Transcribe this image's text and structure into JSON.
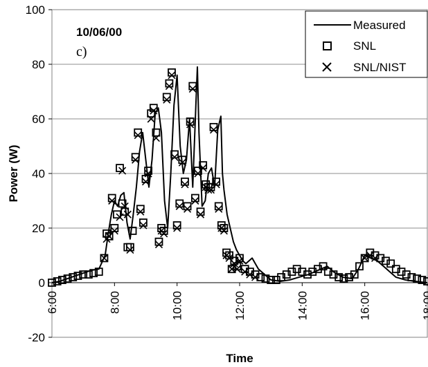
{
  "chart_data": {
    "type": "line",
    "xlabel": "Time",
    "ylabel": "Power (W)",
    "xlim": [
      6,
      18
    ],
    "ylim": [
      -20,
      100
    ],
    "x_ticks": [
      {
        "value": 6,
        "label": "6:00"
      },
      {
        "value": 8,
        "label": "8:00"
      },
      {
        "value": 10,
        "label": "10:00"
      },
      {
        "value": 12,
        "label": "12:00"
      },
      {
        "value": 14,
        "label": "14:00"
      },
      {
        "value": 16,
        "label": "16:00"
      },
      {
        "value": 18,
        "label": "18:00"
      }
    ],
    "y_ticks": [
      {
        "value": -20,
        "label": "-20"
      },
      {
        "value": 0,
        "label": "0"
      },
      {
        "value": 20,
        "label": "20"
      },
      {
        "value": 40,
        "label": "40"
      },
      {
        "value": 60,
        "label": "60"
      },
      {
        "value": 80,
        "label": "80"
      },
      {
        "value": 100,
        "label": "100"
      }
    ],
    "grid": "horizontal",
    "legend": "top-right",
    "annotations": {
      "date": "10/06/00",
      "panel": "c)"
    },
    "series": [
      {
        "name": "Measured",
        "marker": "line",
        "color": "#000000",
        "x": [
          6.0,
          6.25,
          6.5,
          6.75,
          7.0,
          7.25,
          7.5,
          7.7,
          7.8,
          7.9,
          8.0,
          8.1,
          8.2,
          8.3,
          8.4,
          8.5,
          8.6,
          8.7,
          8.8,
          8.9,
          9.0,
          9.1,
          9.2,
          9.3,
          9.4,
          9.5,
          9.6,
          9.7,
          9.8,
          9.9,
          10.0,
          10.1,
          10.2,
          10.3,
          10.4,
          10.5,
          10.6,
          10.65,
          10.7,
          10.8,
          10.9,
          11.0,
          11.1,
          11.2,
          11.3,
          11.4,
          11.45,
          11.5,
          11.6,
          11.7,
          11.8,
          11.9,
          12.0,
          12.1,
          12.2,
          12.3,
          12.4,
          12.6,
          12.8,
          13.0,
          13.3,
          13.6,
          13.9,
          14.2,
          14.5,
          14.8,
          15.0,
          15.3,
          15.6,
          15.8,
          16.0,
          16.2,
          16.4,
          16.6,
          16.8,
          17.0,
          17.3,
          17.6,
          18.0
        ],
        "y": [
          0,
          0.5,
          1.5,
          2.5,
          3.5,
          4.5,
          5,
          10,
          18,
          25,
          30,
          28,
          32,
          33,
          22,
          16,
          25,
          35,
          48,
          55,
          45,
          35,
          45,
          62,
          64,
          55,
          30,
          20,
          40,
          65,
          76,
          50,
          40,
          45,
          60,
          35,
          65,
          79,
          55,
          28,
          30,
          40,
          42,
          35,
          56,
          61,
          40,
          34,
          25,
          20,
          15,
          12,
          10,
          8,
          7,
          8,
          9,
          5,
          3,
          1,
          0.5,
          1,
          2,
          3,
          4.5,
          6,
          4,
          2,
          1.5,
          5,
          10,
          9,
          8,
          6,
          4,
          2,
          1,
          0.5,
          0
        ]
      },
      {
        "name": "SNL",
        "marker": "square",
        "color": "#000000",
        "x": [
          6.0,
          6.17,
          6.33,
          6.5,
          6.67,
          6.83,
          7.0,
          7.17,
          7.33,
          7.5,
          7.67,
          7.75,
          7.83,
          7.92,
          8.0,
          8.08,
          8.17,
          8.25,
          8.33,
          8.42,
          8.5,
          8.58,
          8.67,
          8.75,
          8.83,
          8.92,
          9.0,
          9.08,
          9.17,
          9.25,
          9.33,
          9.42,
          9.5,
          9.58,
          9.67,
          9.75,
          9.83,
          9.92,
          10.0,
          10.08,
          10.17,
          10.25,
          10.33,
          10.42,
          10.5,
          10.58,
          10.67,
          10.75,
          10.83,
          10.92,
          11.0,
          11.08,
          11.17,
          11.25,
          11.33,
          11.42,
          11.5,
          11.58,
          11.67,
          11.75,
          11.83,
          11.92,
          12.0,
          12.17,
          12.33,
          12.5,
          12.67,
          12.83,
          13.0,
          13.17,
          13.33,
          13.5,
          13.67,
          13.83,
          14.0,
          14.17,
          14.33,
          14.5,
          14.67,
          14.83,
          15.0,
          15.17,
          15.33,
          15.5,
          15.67,
          15.83,
          16.0,
          16.17,
          16.33,
          16.5,
          16.67,
          16.83,
          17.0,
          17.17,
          17.33,
          17.5,
          17.67,
          17.83,
          18.0
        ],
        "y": [
          0,
          0.5,
          1,
          1.5,
          2,
          2.5,
          3,
          3,
          3.5,
          4,
          9,
          18,
          17,
          31,
          20,
          25,
          42,
          29,
          26,
          13,
          13,
          19,
          46,
          55,
          27,
          22,
          38,
          41,
          62,
          64,
          55,
          15,
          20,
          19,
          68,
          73,
          77,
          47,
          21,
          29,
          45,
          37,
          28,
          59,
          72,
          31,
          41,
          26,
          43,
          36,
          35,
          35,
          57,
          37,
          28,
          21,
          20,
          11,
          10,
          5,
          8,
          6,
          9,
          5,
          4,
          3,
          2,
          1.5,
          1,
          1,
          2,
          3,
          4,
          5,
          4,
          3,
          4,
          5,
          6,
          4,
          3,
          2,
          1.5,
          2,
          3,
          6,
          9,
          11,
          10,
          9,
          8,
          7,
          5,
          4,
          3,
          2,
          1.5,
          1,
          0.5
        ]
      },
      {
        "name": "SNL/NIST",
        "marker": "x",
        "color": "#000000",
        "x": [
          7.67,
          7.75,
          7.83,
          7.92,
          8.0,
          8.17,
          8.25,
          8.33,
          8.42,
          8.5,
          8.67,
          8.75,
          8.83,
          8.92,
          9.0,
          9.08,
          9.17,
          9.25,
          9.33,
          9.42,
          9.5,
          9.58,
          9.67,
          9.75,
          9.83,
          9.92,
          10.0,
          10.08,
          10.17,
          10.25,
          10.33,
          10.42,
          10.5,
          10.58,
          10.67,
          10.75,
          10.83,
          10.92,
          11.0,
          11.08,
          11.17,
          11.25,
          11.33,
          11.42,
          11.5,
          11.58,
          11.67,
          11.75,
          11.83,
          11.92,
          12.0,
          12.17,
          12.33,
          12.5,
          16.0,
          16.17,
          16.33
        ],
        "y": [
          9,
          16,
          17,
          30,
          19,
          24,
          41,
          28,
          25,
          12,
          45,
          54,
          26,
          21,
          37,
          40,
          60,
          63,
          53,
          14,
          19,
          18,
          67,
          72,
          76,
          46,
          20,
          28,
          44,
          36,
          27,
          58,
          71,
          30,
          40,
          25,
          42,
          35,
          34,
          34,
          56,
          36,
          27,
          20,
          19,
          10,
          9,
          5,
          7,
          5,
          8,
          4,
          3,
          2,
          9,
          10,
          9
        ]
      }
    ]
  }
}
